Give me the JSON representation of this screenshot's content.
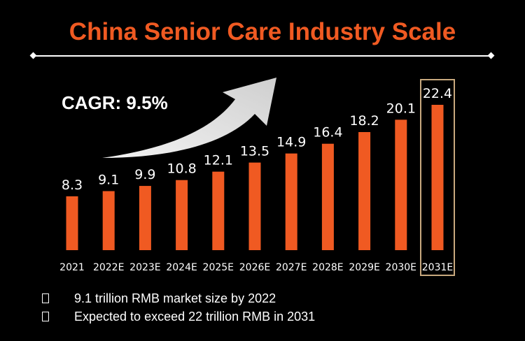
{
  "header": {
    "title": "China Senior Care Industry Scale"
  },
  "annotation": {
    "cagr_label": "CAGR: 9.5%"
  },
  "bullets": [
    {
      "text": "9.1 trillion RMB market size by 2022"
    },
    {
      "text": "Expected to exceed 22 trillion RMB in 2031"
    }
  ],
  "colors": {
    "title": "#f05a22",
    "bar": "#f05a22",
    "highlight_border": "#c8a97e",
    "arrow": "#d9d9d9"
  },
  "chart_data": {
    "type": "bar",
    "title": "China Senior Care Industry Scale",
    "categories": [
      "2021",
      "2022E",
      "2023E",
      "2024E",
      "2025E",
      "2026E",
      "2027E",
      "2028E",
      "2029E",
      "2030E",
      "2031E"
    ],
    "values": [
      8.3,
      9.1,
      9.9,
      10.8,
      12.1,
      13.5,
      14.9,
      16.4,
      18.2,
      20.1,
      22.4
    ],
    "highlighted_category": "2031E",
    "grid": false,
    "legend": "none"
  }
}
